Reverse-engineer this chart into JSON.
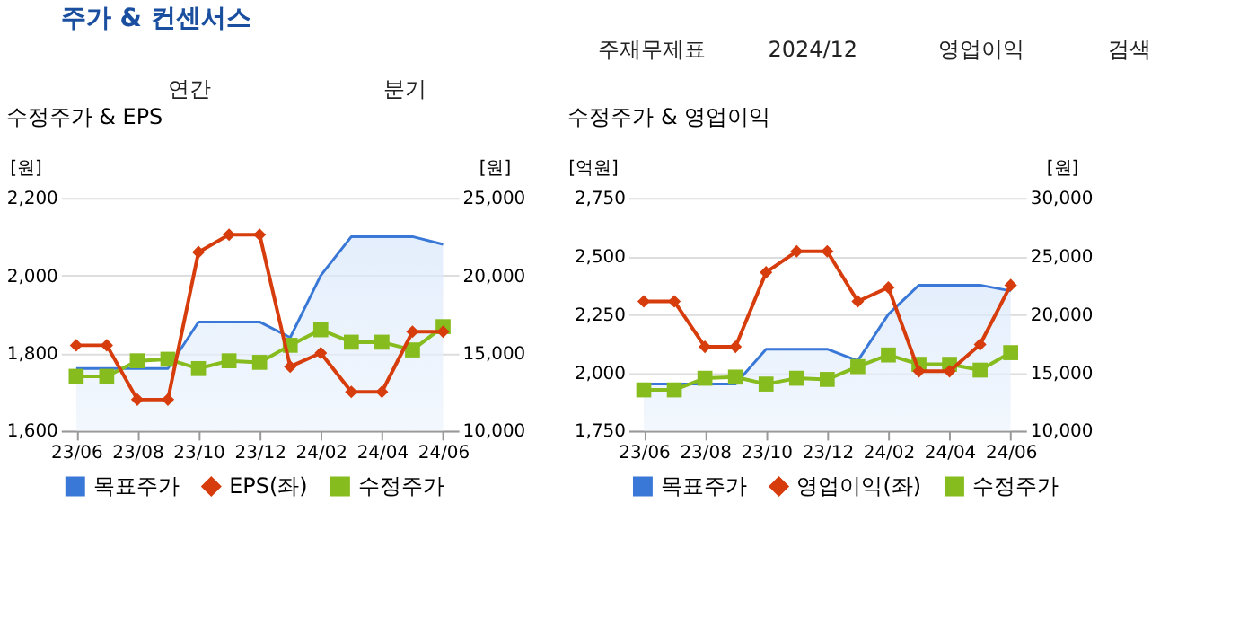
{
  "chart_data": [
    {
      "type": "other",
      "title": "주가 & 컨센서스",
      "annotations": [
        "주재무제표",
        "2024/12",
        "영업이익",
        "검색",
        "연간",
        "분기"
      ]
    },
    {
      "type": "line",
      "title": "수정주가 & EPS",
      "ylabel": "[원]",
      "y2label": "[원]",
      "categories": [
        "23/06",
        null,
        "23/08",
        null,
        "23/10",
        null,
        "23/12",
        null,
        "24/02",
        null,
        "24/04",
        null,
        "24/06"
      ],
      "ylim": [
        1600,
        2200
      ],
      "yticks": [
        {
          "value": 1600,
          "label": "1,600"
        },
        {
          "value": 1800,
          "label": "1,800"
        },
        {
          "value": 2000,
          "label": "2,000"
        },
        {
          "value": 2200,
          "label": "2,200"
        }
      ],
      "y2lim": [
        10000,
        25000
      ],
      "y2ticks": [
        {
          "value": 10000,
          "label": "10,000"
        },
        {
          "value": 15000,
          "label": "15,000"
        },
        {
          "value": 20000,
          "label": "20,000"
        },
        {
          "value": 25000,
          "label": "25,000"
        }
      ],
      "grid": "y",
      "legend": "bottom",
      "line_style": "solid",
      "series": [
        {
          "name": "목표주가",
          "type": "area",
          "axis": "y2",
          "color": "#3a78d8",
          "marker": "none",
          "values": [
            14000,
            14000,
            14000,
            14000,
            17000,
            17000,
            17000,
            16000,
            20000,
            22500,
            22500,
            22500,
            22000
          ]
        },
        {
          "name": "EPS(좌)",
          "type": "line",
          "axis": "y",
          "color": "#d63c0c",
          "marker": "diamond",
          "values": [
            1820,
            1820,
            1680,
            1680,
            2060,
            2105,
            2105,
            1765,
            1800,
            1700,
            1700,
            1855,
            1855
          ]
        },
        {
          "name": "수정주가",
          "type": "line",
          "axis": "y2",
          "color": "#86bc1e",
          "marker": "square",
          "values": [
            13500,
            13500,
            14500,
            14600,
            14000,
            14500,
            14400,
            15500,
            16500,
            15700,
            15700,
            15200,
            16700
          ]
        }
      ]
    },
    {
      "type": "line",
      "title": "수정주가 & 영업이익",
      "ylabel": "[억원]",
      "y2label": "[원]",
      "categories": [
        "23/06",
        null,
        "23/08",
        null,
        "23/10",
        null,
        "23/12",
        null,
        "24/02",
        null,
        "24/04",
        null,
        "24/06"
      ],
      "ylim": [
        1750,
        2750
      ],
      "yticks": [
        {
          "value": 1750,
          "label": "1,750"
        },
        {
          "value": 2000,
          "label": "2,000"
        },
        {
          "value": 2250,
          "label": "2,250"
        },
        {
          "value": 2500,
          "label": "2,500"
        },
        {
          "value": 2750,
          "label": "2,750"
        }
      ],
      "y2lim": [
        10000,
        30000
      ],
      "y2ticks": [
        {
          "value": 10000,
          "label": "10,000"
        },
        {
          "value": 15000,
          "label": "15,000"
        },
        {
          "value": 20000,
          "label": "20,000"
        },
        {
          "value": 25000,
          "label": "25,000"
        },
        {
          "value": 30000,
          "label": "30,000"
        }
      ],
      "grid": "y",
      "legend": "bottom",
      "line_style": "solid",
      "series": [
        {
          "name": "목표주가",
          "type": "area",
          "axis": "y2",
          "color": "#3a78d8",
          "marker": "none",
          "values": [
            14000,
            14000,
            14000,
            14000,
            17000,
            17000,
            17000,
            16000,
            20000,
            22500,
            22500,
            22500,
            22000
          ]
        },
        {
          "name": "영업이익(좌)",
          "type": "line",
          "axis": "y",
          "color": "#d63c0c",
          "marker": "diamond",
          "values": [
            2305,
            2305,
            2110,
            2110,
            2430,
            2520,
            2520,
            2305,
            2365,
            2005,
            2005,
            2120,
            2375
          ]
        },
        {
          "name": "수정주가",
          "type": "line",
          "axis": "y2",
          "color": "#86bc1e",
          "marker": "square",
          "values": [
            13500,
            13500,
            14500,
            14600,
            14000,
            14500,
            14400,
            15500,
            16500,
            15700,
            15700,
            15200,
            16700
          ]
        }
      ]
    }
  ]
}
